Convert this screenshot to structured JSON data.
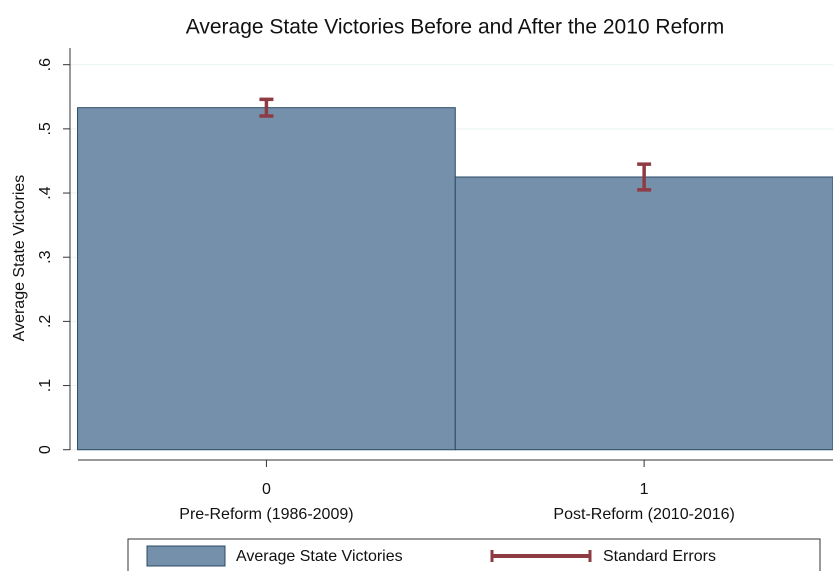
{
  "chart_data": {
    "type": "bar",
    "title": "Average State Victories Before and After the 2010 Reform",
    "y_label": "Average State Victories",
    "x": [
      0,
      1
    ],
    "categories": [
      "Pre-Reform (1986-2009)",
      "Post-Reform (2010-2016)"
    ],
    "xlim": [
      -0.52,
      1.5
    ],
    "xticks": [
      0,
      1
    ],
    "series": [
      {
        "name": "Average State Victories",
        "color": "#7590ab",
        "values": [
          0.533,
          0.425
        ]
      }
    ],
    "errors": {
      "name": "Standard Errors",
      "color": "#8f3b44",
      "values": [
        0.013,
        0.02
      ]
    },
    "ylim": [
      -0.016,
      0.626
    ],
    "yticks": [
      0,
      {
        "value": 0.1,
        "label": ".1"
      },
      {
        "value": 0.2,
        "label": ".2"
      },
      {
        "value": 0.3,
        "label": ".3"
      },
      {
        "value": 0.4,
        "label": ".4"
      },
      {
        "value": 0.5,
        "label": ".5"
      },
      {
        "value": 0.6,
        "label": ".6"
      }
    ],
    "grid": true
  }
}
